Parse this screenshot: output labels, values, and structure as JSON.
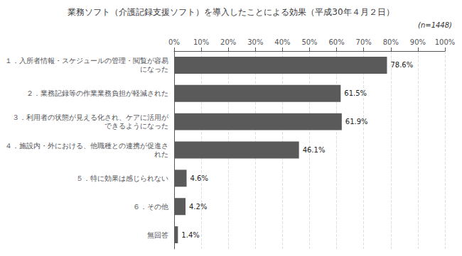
{
  "chart_data": {
    "type": "bar",
    "orientation": "horizontal",
    "title": "業務ソフト（介護記録支援ソフト）を導入したことによる効果（平成30年４月２日）",
    "annotation": "(n=1448)",
    "categories": [
      "１．入所者情報・スケジュールの管理・閲覧が容易\nになった",
      "２．業務記録等の作業業務負担が軽減された",
      "３．利用者の状態が見える化され、ケアに活用が\nできるようになった",
      "４．施設内・外における、他職種との連携が促進さ\nれた",
      "５．特に効果は感じられない",
      "６．その他",
      "無回答"
    ],
    "values": [
      78.6,
      61.5,
      61.9,
      46.1,
      4.6,
      4.2,
      1.4
    ],
    "value_labels": [
      "78.6%",
      "61.5%",
      "61.9%",
      "46.1%",
      "4.6%",
      "4.2%",
      "1.4%"
    ],
    "data_labels": true,
    "color": "#5a5a5a",
    "xlim": [
      0,
      100
    ],
    "xticks": [
      {
        "value": 0,
        "label": "0%"
      },
      {
        "value": 10,
        "label": "10%"
      },
      {
        "value": 20,
        "label": "20%"
      },
      {
        "value": 30,
        "label": "30%"
      },
      {
        "value": 40,
        "label": "40%"
      },
      {
        "value": 50,
        "label": "50%"
      },
      {
        "value": 60,
        "label": "60%"
      },
      {
        "value": 70,
        "label": "70%"
      },
      {
        "value": 80,
        "label": "80%"
      },
      {
        "value": 90,
        "label": "90%"
      },
      {
        "value": 100,
        "label": "100%"
      }
    ],
    "grid": true
  }
}
